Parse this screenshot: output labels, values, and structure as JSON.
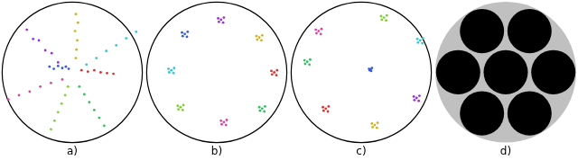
{
  "chart_data": [
    {
      "type": "scatter",
      "title": "a)",
      "xlim": [
        -1,
        1
      ],
      "ylim": [
        -1,
        1
      ],
      "tick_labels": false,
      "grid": false,
      "series": [
        {
          "color": "#9b30d9",
          "x": [
            -0.64,
            -0.55,
            -0.47,
            -0.38,
            -0.29,
            -0.2
          ],
          "y": [
            0.6,
            0.47,
            0.45,
            0.31,
            0.27,
            0.14
          ]
        },
        {
          "color": "#d4b020",
          "x": [
            0.05,
            0.08,
            0.04,
            0.07,
            0.06,
            0.05
          ],
          "y": [
            0.82,
            0.7,
            0.58,
            0.45,
            0.32,
            0.2
          ]
        },
        {
          "color": "#30c8d8",
          "x": [
            0.2,
            0.34,
            0.48,
            0.62,
            0.76,
            0.9
          ],
          "y": [
            0.11,
            0.2,
            0.3,
            0.38,
            0.48,
            0.57
          ]
        },
        {
          "color": "#3a5bd9",
          "x": [
            -0.32,
            -0.26,
            -0.2,
            -0.14,
            -0.09,
            -0.05
          ],
          "y": [
            0.08,
            0.05,
            0.09,
            0.06,
            0.08,
            0.05
          ]
        },
        {
          "color": "#e03030",
          "x": [
            0.13,
            0.22,
            0.31,
            0.4,
            0.49,
            0.58
          ],
          "y": [
            0.03,
            0.01,
            0.03,
            0.0,
            -0.01,
            -0.02
          ]
        },
        {
          "color": "#e040a0",
          "x": [
            -0.14,
            -0.3,
            -0.45,
            -0.6,
            -0.75,
            -0.9
          ],
          "y": [
            -0.1,
            -0.15,
            -0.2,
            -0.27,
            -0.32,
            -0.38
          ]
        },
        {
          "color": "#7ed030",
          "x": [
            -0.06,
            -0.1,
            -0.15,
            -0.2,
            -0.25,
            -0.3
          ],
          "y": [
            -0.2,
            -0.32,
            -0.44,
            -0.56,
            -0.68,
            -0.8
          ]
        },
        {
          "color": "#30c060",
          "x": [
            0.1,
            0.17,
            0.24,
            0.31,
            0.38,
            0.45
          ],
          "y": [
            -0.2,
            -0.31,
            -0.42,
            -0.53,
            -0.64,
            -0.75
          ]
        }
      ]
    },
    {
      "type": "scatter",
      "title": "b)",
      "xlim": [
        -1,
        1
      ],
      "ylim": [
        -1,
        1
      ],
      "tick_labels": false,
      "grid": false,
      "series": [
        {
          "color": "#3a5bd9",
          "x": [
            -0.45,
            -0.41,
            -0.49,
            -0.42,
            -0.48
          ],
          "y": [
            0.54,
            0.57,
            0.56,
            0.5,
            0.51
          ]
        },
        {
          "color": "#9b30d9",
          "x": [
            0.06,
            0.1,
            0.02,
            0.09,
            0.03
          ],
          "y": [
            0.74,
            0.77,
            0.76,
            0.7,
            0.71
          ]
        },
        {
          "color": "#d4b020",
          "x": [
            0.6,
            0.64,
            0.56,
            0.63,
            0.57
          ],
          "y": [
            0.49,
            0.52,
            0.51,
            0.45,
            0.46
          ]
        },
        {
          "color": "#30c8d8",
          "x": [
            -0.64,
            -0.6,
            -0.68,
            -0.61,
            -0.67
          ],
          "y": [
            0.03,
            0.06,
            0.05,
            -0.01,
            0
          ]
        },
        {
          "color": "#e03030",
          "x": [
            0.81,
            0.85,
            0.77,
            0.84,
            0.78
          ],
          "y": [
            0,
            0.03,
            0.02,
            -0.04,
            -0.03
          ]
        },
        {
          "color": "#7ed030",
          "x": [
            -0.51,
            -0.47,
            -0.55,
            -0.48,
            -0.54
          ],
          "y": [
            -0.49,
            -0.46,
            -0.47,
            -0.53,
            -0.52
          ]
        },
        {
          "color": "#e040a0",
          "x": [
            0.1,
            0.14,
            0.06,
            0.13,
            0.07
          ],
          "y": [
            -0.7,
            -0.67,
            -0.68,
            -0.74,
            -0.73
          ]
        },
        {
          "color": "#30c060",
          "x": [
            0.64,
            0.68,
            0.6,
            0.67,
            0.61
          ],
          "y": [
            -0.51,
            -0.48,
            -0.49,
            -0.55,
            -0.54
          ]
        }
      ]
    },
    {
      "type": "scatter",
      "title": "c)",
      "xlim": [
        -1,
        1
      ],
      "ylim": [
        -1,
        1
      ],
      "tick_labels": false,
      "grid": false,
      "series": [
        {
          "color": "#e040a0",
          "x": [
            -0.6,
            -0.56,
            -0.64,
            -0.57,
            -0.63
          ],
          "y": [
            0.58,
            0.61,
            0.6,
            0.54,
            0.55
          ]
        },
        {
          "color": "#7ed030",
          "x": [
            0.32,
            0.36,
            0.28,
            0.35,
            0.29
          ],
          "y": [
            0.77,
            0.8,
            0.79,
            0.73,
            0.74
          ]
        },
        {
          "color": "#30c8d8",
          "x": [
            0.83,
            0.87,
            0.79,
            0.86,
            0.8
          ],
          "y": [
            0.45,
            0.48,
            0.47,
            0.41,
            0.42
          ]
        },
        {
          "color": "#30c060",
          "x": [
            -0.76,
            -0.72,
            -0.8,
            -0.73,
            -0.79
          ],
          "y": [
            0.15,
            0.18,
            0.17,
            0.11,
            0.12
          ]
        },
        {
          "color": "#3a5bd9",
          "x": [
            0.13,
            0.15,
            0.11,
            0.14,
            0.12
          ],
          "y": [
            0.04,
            0.06,
            0.05,
            0.02,
            0.03
          ]
        },
        {
          "color": "#e03030",
          "x": [
            -0.5,
            -0.46,
            -0.54,
            -0.47,
            -0.53
          ],
          "y": [
            -0.51,
            -0.48,
            -0.49,
            -0.55,
            -0.54
          ]
        },
        {
          "color": "#d4b020",
          "x": [
            0.19,
            0.23,
            0.15,
            0.22,
            0.16
          ],
          "y": [
            -0.74,
            -0.71,
            -0.72,
            -0.78,
            -0.77
          ]
        },
        {
          "color": "#9b30d9",
          "x": [
            0.78,
            0.82,
            0.74,
            0.81,
            0.75
          ],
          "y": [
            -0.36,
            -0.33,
            -0.34,
            -0.4,
            -0.39
          ]
        }
      ]
    },
    {
      "type": "circles",
      "title": "d)",
      "xlim": [
        -1,
        1
      ],
      "ylim": [
        -1,
        1
      ],
      "tick_labels": false,
      "grid": false,
      "color": "#000000",
      "circles": [
        {
          "x": 0,
          "y": 0,
          "r": 0.31
        },
        {
          "x": 0.667,
          "y": 0,
          "r": 0.31
        },
        {
          "x": 0.333,
          "y": 0.577,
          "r": 0.31
        },
        {
          "x": -0.333,
          "y": 0.577,
          "r": 0.31
        },
        {
          "x": -0.667,
          "y": 0,
          "r": 0.31
        },
        {
          "x": -0.333,
          "y": -0.577,
          "r": 0.31
        },
        {
          "x": 0.333,
          "y": -0.577,
          "r": 0.31
        }
      ]
    }
  ]
}
